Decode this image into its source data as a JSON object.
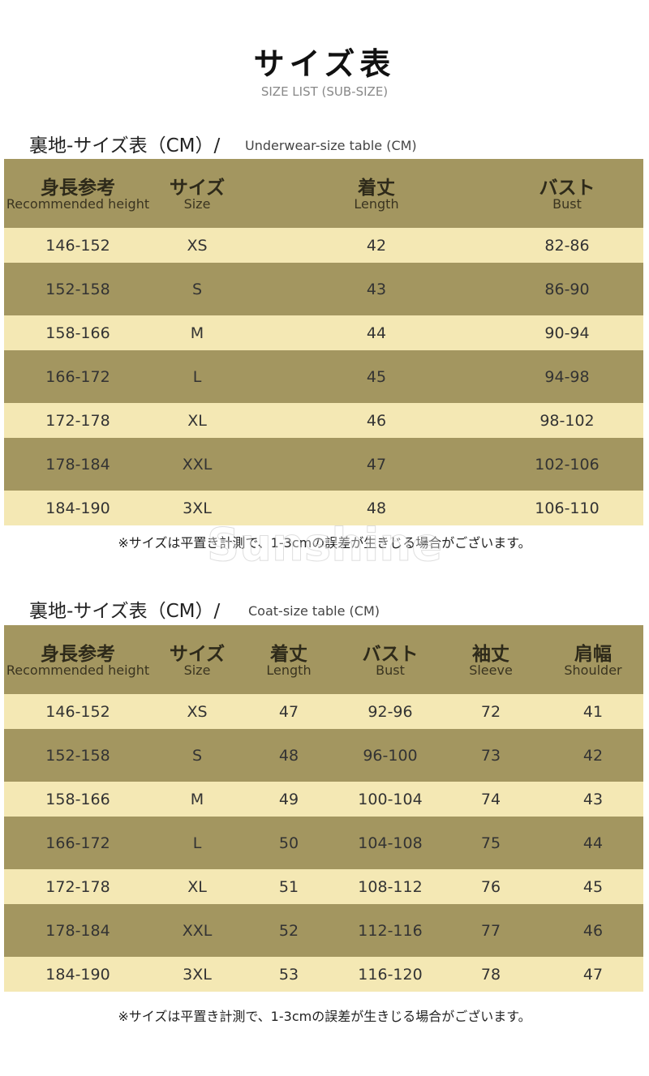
{
  "header": {
    "title": "サイズ表",
    "subtitle": "SIZE LIST (SUB-SIZE)"
  },
  "watermark": "Sunshine",
  "tables": [
    {
      "heading": "裏地-サイズ表（CM）/",
      "heading_en": "Underwear-size table (CM)",
      "columns": [
        {
          "ja": "身長参考",
          "en": "Recommended height"
        },
        {
          "ja": "サイズ",
          "en": "Size"
        },
        {
          "ja": "着丈",
          "en": "Length"
        },
        {
          "ja": "バスト",
          "en": "Bust"
        }
      ],
      "rows": [
        [
          "146-152",
          "XS",
          "42",
          "82-86"
        ],
        [
          "152-158",
          "S",
          "43",
          "86-90"
        ],
        [
          "158-166",
          "M",
          "44",
          "90-94"
        ],
        [
          "166-172",
          "L",
          "45",
          "94-98"
        ],
        [
          "172-178",
          "XL",
          "46",
          "98-102"
        ],
        [
          "178-184",
          "XXL",
          "47",
          "102-106"
        ],
        [
          "184-190",
          "3XL",
          "48",
          "106-110"
        ]
      ],
      "note": "※サイズは平置き計測で、1-3cmの誤差が生きじる場合がございます。"
    },
    {
      "heading": "裏地-サイズ表（CM）/",
      "heading_en": "Coat-size table (CM)",
      "columns": [
        {
          "ja": "身長参考",
          "en": "Recommended height"
        },
        {
          "ja": "サイズ",
          "en": "Size"
        },
        {
          "ja": "着丈",
          "en": "Length"
        },
        {
          "ja": "バスト",
          "en": "Bust"
        },
        {
          "ja": "袖丈",
          "en": "Sleeve"
        },
        {
          "ja": "肩幅",
          "en": "Shoulder"
        }
      ],
      "rows": [
        [
          "146-152",
          "XS",
          "47",
          "92-96",
          "72",
          "41"
        ],
        [
          "152-158",
          "S",
          "48",
          "96-100",
          "73",
          "42"
        ],
        [
          "158-166",
          "M",
          "49",
          "100-104",
          "74",
          "43"
        ],
        [
          "166-172",
          "L",
          "50",
          "104-108",
          "75",
          "44"
        ],
        [
          "172-178",
          "XL",
          "51",
          "108-112",
          "76",
          "45"
        ],
        [
          "178-184",
          "XXL",
          "52",
          "112-116",
          "77",
          "46"
        ],
        [
          "184-190",
          "3XL",
          "53",
          "116-120",
          "78",
          "47"
        ]
      ],
      "note": "※サイズは平置き計測で、1-3cmの誤差が生きじる場合がございます。"
    }
  ]
}
